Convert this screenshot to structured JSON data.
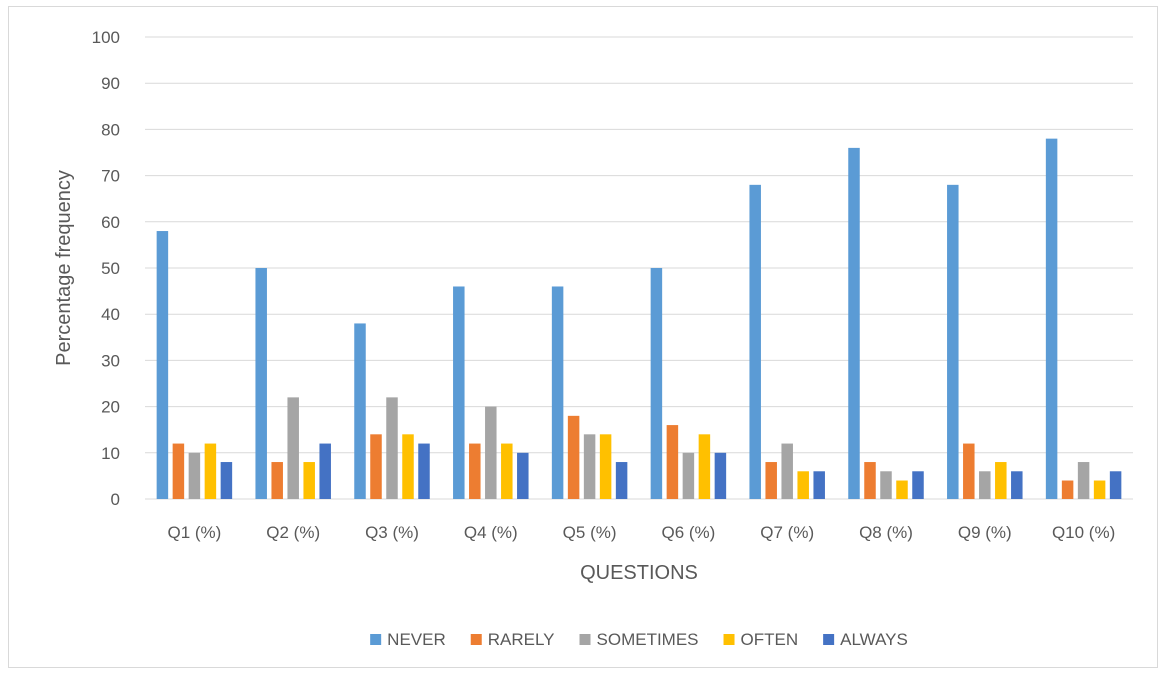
{
  "chart_data": {
    "type": "bar",
    "title": "",
    "xlabel": "QUESTIONS",
    "ylabel": "Percentage frequency",
    "ylim": [
      0,
      100
    ],
    "yticks": [
      "0",
      "10",
      "20",
      "30",
      "40",
      "50",
      "60",
      "70",
      "80",
      "90",
      "100"
    ],
    "grid": true,
    "legend_position": "bottom",
    "categories": [
      "Q1 (%)",
      "Q2 (%)",
      "Q3 (%)",
      "Q4 (%)",
      "Q5 (%)",
      "Q6 (%)",
      "Q7 (%)",
      "Q8 (%)",
      "Q9 (%)",
      "Q10 (%)"
    ],
    "series": [
      {
        "name": "NEVER",
        "color": "#5b9bd5",
        "values": [
          58,
          50,
          38,
          46,
          46,
          50,
          68,
          76,
          68,
          78
        ]
      },
      {
        "name": "RARELY",
        "color": "#ed7d31",
        "values": [
          12,
          8,
          14,
          12,
          18,
          16,
          8,
          8,
          12,
          4
        ]
      },
      {
        "name": "SOMETIMES",
        "color": "#a5a5a5",
        "values": [
          10,
          22,
          22,
          20,
          14,
          10,
          12,
          6,
          6,
          8
        ]
      },
      {
        "name": "OFTEN",
        "color": "#ffc000",
        "values": [
          12,
          8,
          14,
          12,
          14,
          14,
          6,
          4,
          8,
          4
        ]
      },
      {
        "name": "ALWAYS",
        "color": "#4472c4",
        "values": [
          8,
          12,
          12,
          10,
          8,
          10,
          6,
          6,
          6,
          6
        ]
      }
    ]
  }
}
